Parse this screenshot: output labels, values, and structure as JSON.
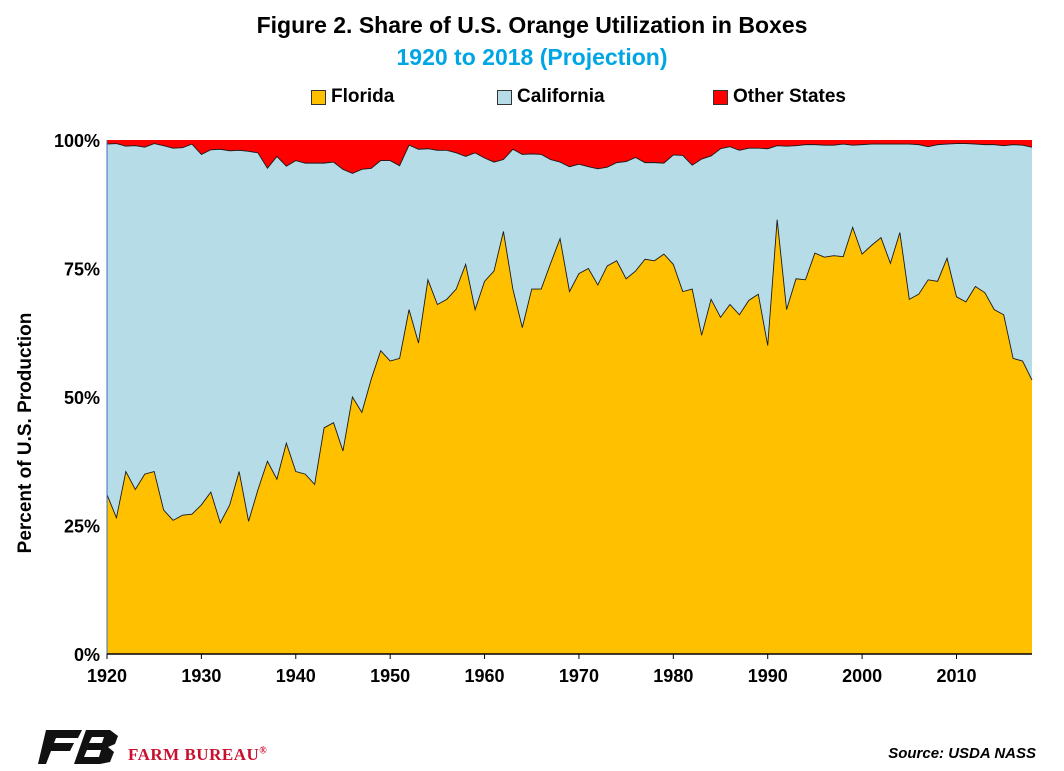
{
  "chart_data": {
    "type": "area",
    "stacked": true,
    "percent_stacked": true,
    "title": "Figure 2. Share of U.S. Orange Utilization in Boxes",
    "subtitle": "1920 to 2018 (Projection)",
    "ylabel": "Percent of U.S. Production",
    "xlabel": "",
    "xlim": [
      1920,
      2018
    ],
    "ylim": [
      0,
      100
    ],
    "x_ticks": [
      "1920",
      "1930",
      "1940",
      "1950",
      "1960",
      "1970",
      "1980",
      "1990",
      "2000",
      "2010"
    ],
    "y_ticks": [
      "0%",
      "25%",
      "50%",
      "75%",
      "100%"
    ],
    "grid": false,
    "legend_position": "top",
    "x": [
      1920,
      1921,
      1922,
      1923,
      1924,
      1925,
      1926,
      1927,
      1928,
      1929,
      1930,
      1931,
      1932,
      1933,
      1934,
      1935,
      1936,
      1937,
      1938,
      1939,
      1940,
      1941,
      1942,
      1943,
      1944,
      1945,
      1946,
      1947,
      1948,
      1949,
      1950,
      1951,
      1952,
      1953,
      1954,
      1955,
      1956,
      1957,
      1958,
      1959,
      1960,
      1961,
      1962,
      1963,
      1964,
      1965,
      1966,
      1967,
      1968,
      1969,
      1970,
      1971,
      1972,
      1973,
      1974,
      1975,
      1976,
      1977,
      1978,
      1979,
      1980,
      1981,
      1982,
      1983,
      1984,
      1985,
      1986,
      1987,
      1988,
      1989,
      1990,
      1991,
      1992,
      1993,
      1994,
      1995,
      1996,
      1997,
      1998,
      1999,
      2000,
      2001,
      2002,
      2003,
      2004,
      2005,
      2006,
      2007,
      2008,
      2009,
      2010,
      2011,
      2012,
      2013,
      2014,
      2015,
      2016,
      2017,
      2018
    ],
    "series": [
      {
        "name": "Florida",
        "color": "#ffc000",
        "values": [
          31,
          26.5,
          35.5,
          32,
          35,
          35.5,
          28,
          26,
          27,
          27.2,
          29,
          31.5,
          25.5,
          29,
          35.5,
          25.8,
          32,
          37.5,
          34,
          41,
          35.5,
          35,
          33,
          44,
          45,
          39.5,
          50,
          47,
          53.5,
          59,
          57,
          57.5,
          67,
          60.5,
          72.8,
          68,
          69,
          71,
          75.8,
          67,
          72.5,
          74.5,
          82.2,
          71,
          63.5,
          71,
          71,
          76,
          80.8,
          70.5,
          74,
          75,
          71.8,
          75.5,
          76.5,
          73,
          74.5,
          76.8,
          76.5,
          77.8,
          75.8,
          70.5,
          71,
          62,
          69,
          65.5,
          68,
          66,
          68.8,
          70,
          60,
          84.5,
          67,
          73,
          72.8,
          78,
          77.2,
          77.5,
          77.3,
          83,
          77.8,
          79.5,
          81,
          76,
          82,
          69,
          70,
          72.8,
          72.5,
          77,
          69.5,
          68.5,
          71.5,
          70.3,
          67,
          66,
          57.5,
          57,
          53.3
        ]
      },
      {
        "name": "California",
        "color": "#b6dce8",
        "values": [
          68.2,
          72.8,
          63.3,
          66.9,
          63.6,
          63.8,
          70.9,
          72.4,
          71.5,
          72,
          68.2,
          66.6,
          72.7,
          68.9,
          62.5,
          72,
          65.5,
          57,
          62.8,
          53.9,
          60.5,
          60.5,
          62.5,
          51.5,
          50.7,
          54.8,
          43.5,
          47.3,
          41,
          37,
          39,
          37.5,
          32,
          37.7,
          25.5,
          30,
          29,
          26.5,
          21,
          30.5,
          24,
          21.2,
          14,
          27.2,
          33.7,
          26.3,
          26.2,
          20.2,
          14.9,
          24.3,
          21.3,
          19.8,
          22.6,
          19.2,
          19.1,
          22.8,
          22.1,
          18.8,
          19.1,
          17.7,
          21.3,
          26.5,
          24.1,
          34.3,
          27.9,
          32.8,
          30.7,
          32,
          29.6,
          28.4,
          38.3,
          14.4,
          31.8,
          25.9,
          26.3,
          21.1,
          21.8,
          21.5,
          21.9,
          16,
          21.3,
          19.7,
          18.2,
          23.2,
          17.2,
          30.2,
          29.1,
          25.9,
          26.6,
          22.2,
          29.8,
          30.8,
          27.7,
          28.8,
          32.1,
          32.9,
          41.6,
          42,
          45.3
        ]
      },
      {
        "name": "Other States",
        "color": "#ff0000",
        "values": [
          0.8,
          0.7,
          1.2,
          1.1,
          1.4,
          0.7,
          1.1,
          1.6,
          1.5,
          0.8,
          2.8,
          1.9,
          1.8,
          2.1,
          2,
          2.2,
          2.5,
          5.5,
          3.2,
          5.1,
          4,
          4.5,
          4.5,
          4.5,
          4.3,
          5.7,
          6.5,
          5.7,
          5.5,
          4,
          4,
          5,
          1,
          1.8,
          1.7,
          2,
          2,
          2.5,
          3.2,
          2.5,
          3.5,
          4.3,
          3.8,
          1.8,
          2.8,
          2.7,
          2.8,
          3.8,
          4.3,
          5.2,
          4.7,
          5.2,
          5.6,
          5.3,
          4.4,
          4.2,
          3.4,
          4.4,
          4.4,
          4.5,
          2.9,
          3,
          4.9,
          3.7,
          3.1,
          1.7,
          1.3,
          2,
          1.6,
          1.6,
          1.7,
          1.1,
          1.2,
          1.1,
          0.9,
          0.9,
          1,
          1,
          0.8,
          1,
          0.9,
          0.8,
          0.8,
          0.8,
          0.8,
          0.8,
          0.9,
          1.3,
          0.9,
          0.8,
          0.7,
          0.7,
          0.8,
          0.9,
          0.9,
          1.1,
          0.9,
          1,
          1.4
        ]
      }
    ]
  },
  "footer": {
    "source": "Source: USDA NASS",
    "brand_name": "FARM BUREAU",
    "brand_mark": "®"
  }
}
